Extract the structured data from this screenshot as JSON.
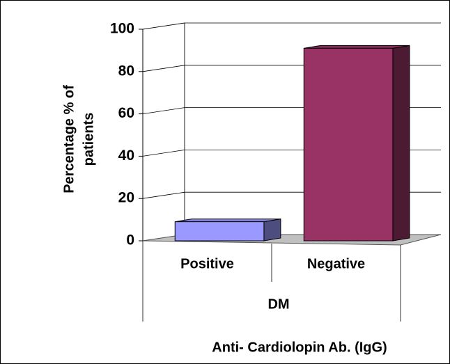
{
  "chart_data": {
    "type": "bar3d",
    "ylabel": [
      "Percentage % of",
      "patients"
    ],
    "xlabel": "Anti- Cardiolopin Ab. (IgG)",
    "group": "DM",
    "categories": [
      "Positive",
      "Negative"
    ],
    "series": [
      {
        "name": null,
        "values": [
          9,
          91
        ],
        "colors": [
          "#9999ff",
          "#993366"
        ]
      }
    ],
    "ylim": [
      0,
      100
    ],
    "yticks": [
      0,
      20,
      40,
      60,
      80,
      100
    ],
    "grid": true
  }
}
